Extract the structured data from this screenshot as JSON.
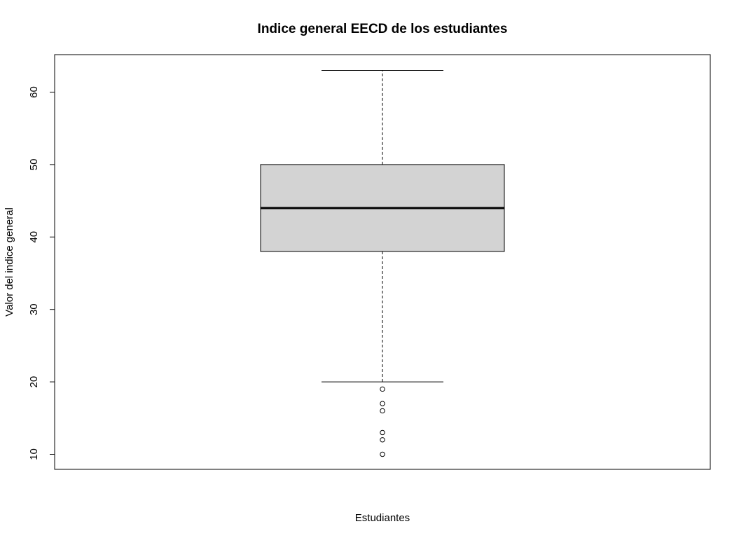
{
  "chart_data": {
    "type": "boxplot",
    "title": "Indice general EECD de los estudiantes",
    "xlabel": "Estudiantes",
    "ylabel": "Valor del indice general",
    "ylim": [
      8,
      65
    ],
    "yticks": [
      10,
      20,
      30,
      40,
      50,
      60
    ],
    "grid": false,
    "box": {
      "whisker_low": 20,
      "q1": 38,
      "median": 44,
      "q3": 50,
      "whisker_high": 63,
      "outliers": [
        19,
        17,
        16,
        13,
        12,
        10
      ],
      "fill_color": "#d3d3d3",
      "line_color": "#000000"
    }
  }
}
